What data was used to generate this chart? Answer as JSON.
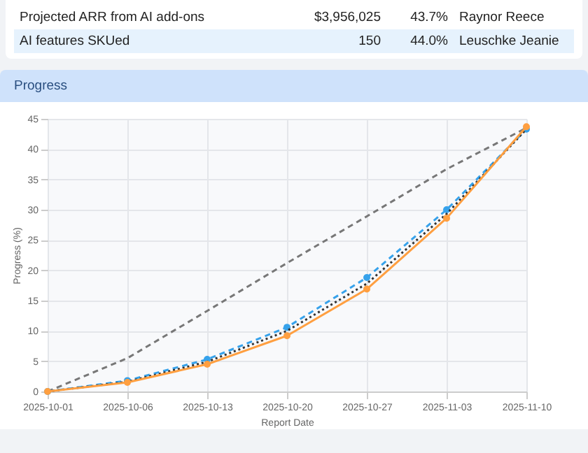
{
  "chart_data": {
    "type": "line",
    "title": "Progress",
    "xlabel": "Report Date",
    "ylabel": "Progress (%)",
    "annotations": [
      "Projected ARR from AI add-ons",
      "$3,956,025",
      "43.7%",
      "Raynor Reece",
      "AI features SKUed",
      "150",
      "44.0%",
      "Leuschke Jeanie"
    ],
    "categories": [
      "2025-10-01",
      "2025-10-06",
      "2025-10-13",
      "2025-10-20",
      "2025-10-27",
      "2025-11-03",
      "2025-11-10"
    ],
    "series": [
      {
        "color": "#777777",
        "line_style": "dashed",
        "marker": "none",
        "values": [
          0,
          5.5,
          13.3,
          21.2,
          28.9,
          36.7,
          43.5
        ]
      },
      {
        "color": "#36a2eb",
        "line_style": "dashed",
        "marker": "circle",
        "values": [
          0,
          1.8,
          5.3,
          10.6,
          18.8,
          30.0,
          43.3
        ]
      },
      {
        "color": "#333333",
        "line_style": "dotted",
        "marker": "none",
        "values": [
          0,
          1.6,
          4.9,
          10.0,
          17.8,
          29.3,
          43.3
        ]
      },
      {
        "color": "#ff9f40",
        "line_style": "solid",
        "marker": "circle",
        "values": [
          0,
          1.5,
          4.5,
          9.2,
          16.9,
          28.6,
          43.7
        ]
      }
    ],
    "ylim": [
      0,
      45
    ],
    "yticks": [
      0,
      5,
      10,
      15,
      20,
      25,
      30,
      35,
      40,
      45
    ],
    "grid": true
  }
}
